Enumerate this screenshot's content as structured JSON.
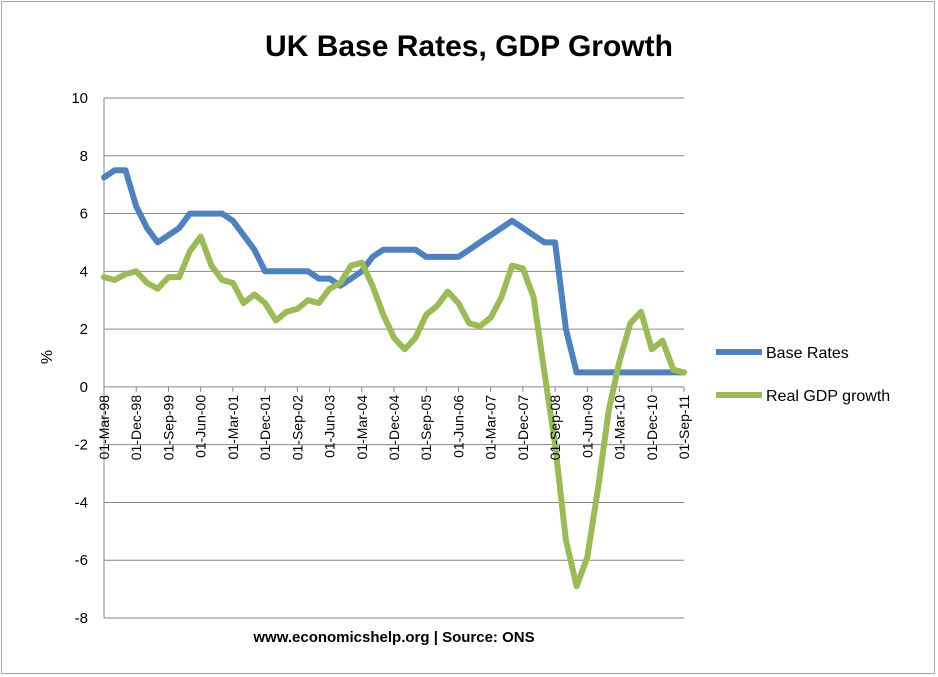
{
  "chart_data": {
    "type": "line",
    "title": "UK Base Rates, GDP Growth",
    "ylabel": "%",
    "xlabel": "",
    "ylim": [
      -8,
      10
    ],
    "yticks": [
      -8,
      -6,
      -4,
      -2,
      0,
      2,
      4,
      6,
      8,
      10
    ],
    "x_tick_labels": [
      "01-Mar-98",
      "01-Dec-98",
      "01-Sep-99",
      "01-Jun-00",
      "01-Mar-01",
      "01-Dec-01",
      "01-Sep-02",
      "01-Jun-03",
      "01-Mar-04",
      "01-Dec-04",
      "01-Sep-05",
      "01-Jun-06",
      "01-Mar-07",
      "01-Dec-07",
      "01-Sep-08",
      "01-Jun-09",
      "01-Mar-10",
      "01-Dec-10",
      "01-Sep-11"
    ],
    "grid": true,
    "legend_position": "right",
    "source": "www.economicshelp.org | Source: ONS",
    "x": [
      "01-Mar-98",
      "01-Jun-98",
      "01-Sep-98",
      "01-Dec-98",
      "01-Mar-99",
      "01-Jun-99",
      "01-Sep-99",
      "01-Dec-99",
      "01-Mar-00",
      "01-Jun-00",
      "01-Sep-00",
      "01-Dec-00",
      "01-Mar-01",
      "01-Jun-01",
      "01-Sep-01",
      "01-Dec-01",
      "01-Mar-02",
      "01-Jun-02",
      "01-Sep-02",
      "01-Dec-02",
      "01-Mar-03",
      "01-Jun-03",
      "01-Sep-03",
      "01-Dec-03",
      "01-Mar-04",
      "01-Jun-04",
      "01-Sep-04",
      "01-Dec-04",
      "01-Mar-05",
      "01-Jun-05",
      "01-Sep-05",
      "01-Dec-05",
      "01-Mar-06",
      "01-Jun-06",
      "01-Sep-06",
      "01-Dec-06",
      "01-Mar-07",
      "01-Jun-07",
      "01-Sep-07",
      "01-Dec-07",
      "01-Mar-08",
      "01-Jun-08",
      "01-Sep-08",
      "01-Dec-08",
      "01-Mar-09",
      "01-Jun-09",
      "01-Sep-09",
      "01-Dec-09",
      "01-Mar-10",
      "01-Jun-10",
      "01-Sep-10",
      "01-Dec-10",
      "01-Mar-11",
      "01-Jun-11",
      "01-Sep-11"
    ],
    "series": [
      {
        "name": "Base Rates",
        "color": "#4f81bd",
        "values": [
          7.25,
          7.5,
          7.5,
          6.25,
          5.5,
          5.0,
          5.25,
          5.5,
          6.0,
          6.0,
          6.0,
          6.0,
          5.75,
          5.25,
          4.75,
          4.0,
          4.0,
          4.0,
          4.0,
          4.0,
          3.75,
          3.75,
          3.5,
          3.75,
          4.0,
          4.5,
          4.75,
          4.75,
          4.75,
          4.75,
          4.5,
          4.5,
          4.5,
          4.5,
          4.75,
          5.0,
          5.25,
          5.5,
          5.75,
          5.5,
          5.25,
          5.0,
          5.0,
          2.0,
          0.5,
          0.5,
          0.5,
          0.5,
          0.5,
          0.5,
          0.5,
          0.5,
          0.5,
          0.5,
          0.5
        ]
      },
      {
        "name": "Real GDP growth",
        "color": "#9bbb59",
        "values": [
          3.8,
          3.7,
          3.9,
          4.0,
          3.6,
          3.4,
          3.8,
          3.8,
          4.7,
          5.2,
          4.2,
          3.7,
          3.6,
          2.9,
          3.2,
          2.9,
          2.3,
          2.6,
          2.7,
          3.0,
          2.9,
          3.4,
          3.6,
          4.2,
          4.3,
          3.5,
          2.5,
          1.7,
          1.3,
          1.7,
          2.5,
          2.8,
          3.3,
          2.9,
          2.2,
          2.1,
          2.4,
          3.1,
          4.2,
          4.1,
          3.1,
          0.5,
          -2.0,
          -5.3,
          -6.9,
          -5.9,
          -3.5,
          -0.8,
          0.9,
          2.2,
          2.6,
          1.3,
          1.6,
          0.6,
          0.5
        ]
      }
    ]
  }
}
